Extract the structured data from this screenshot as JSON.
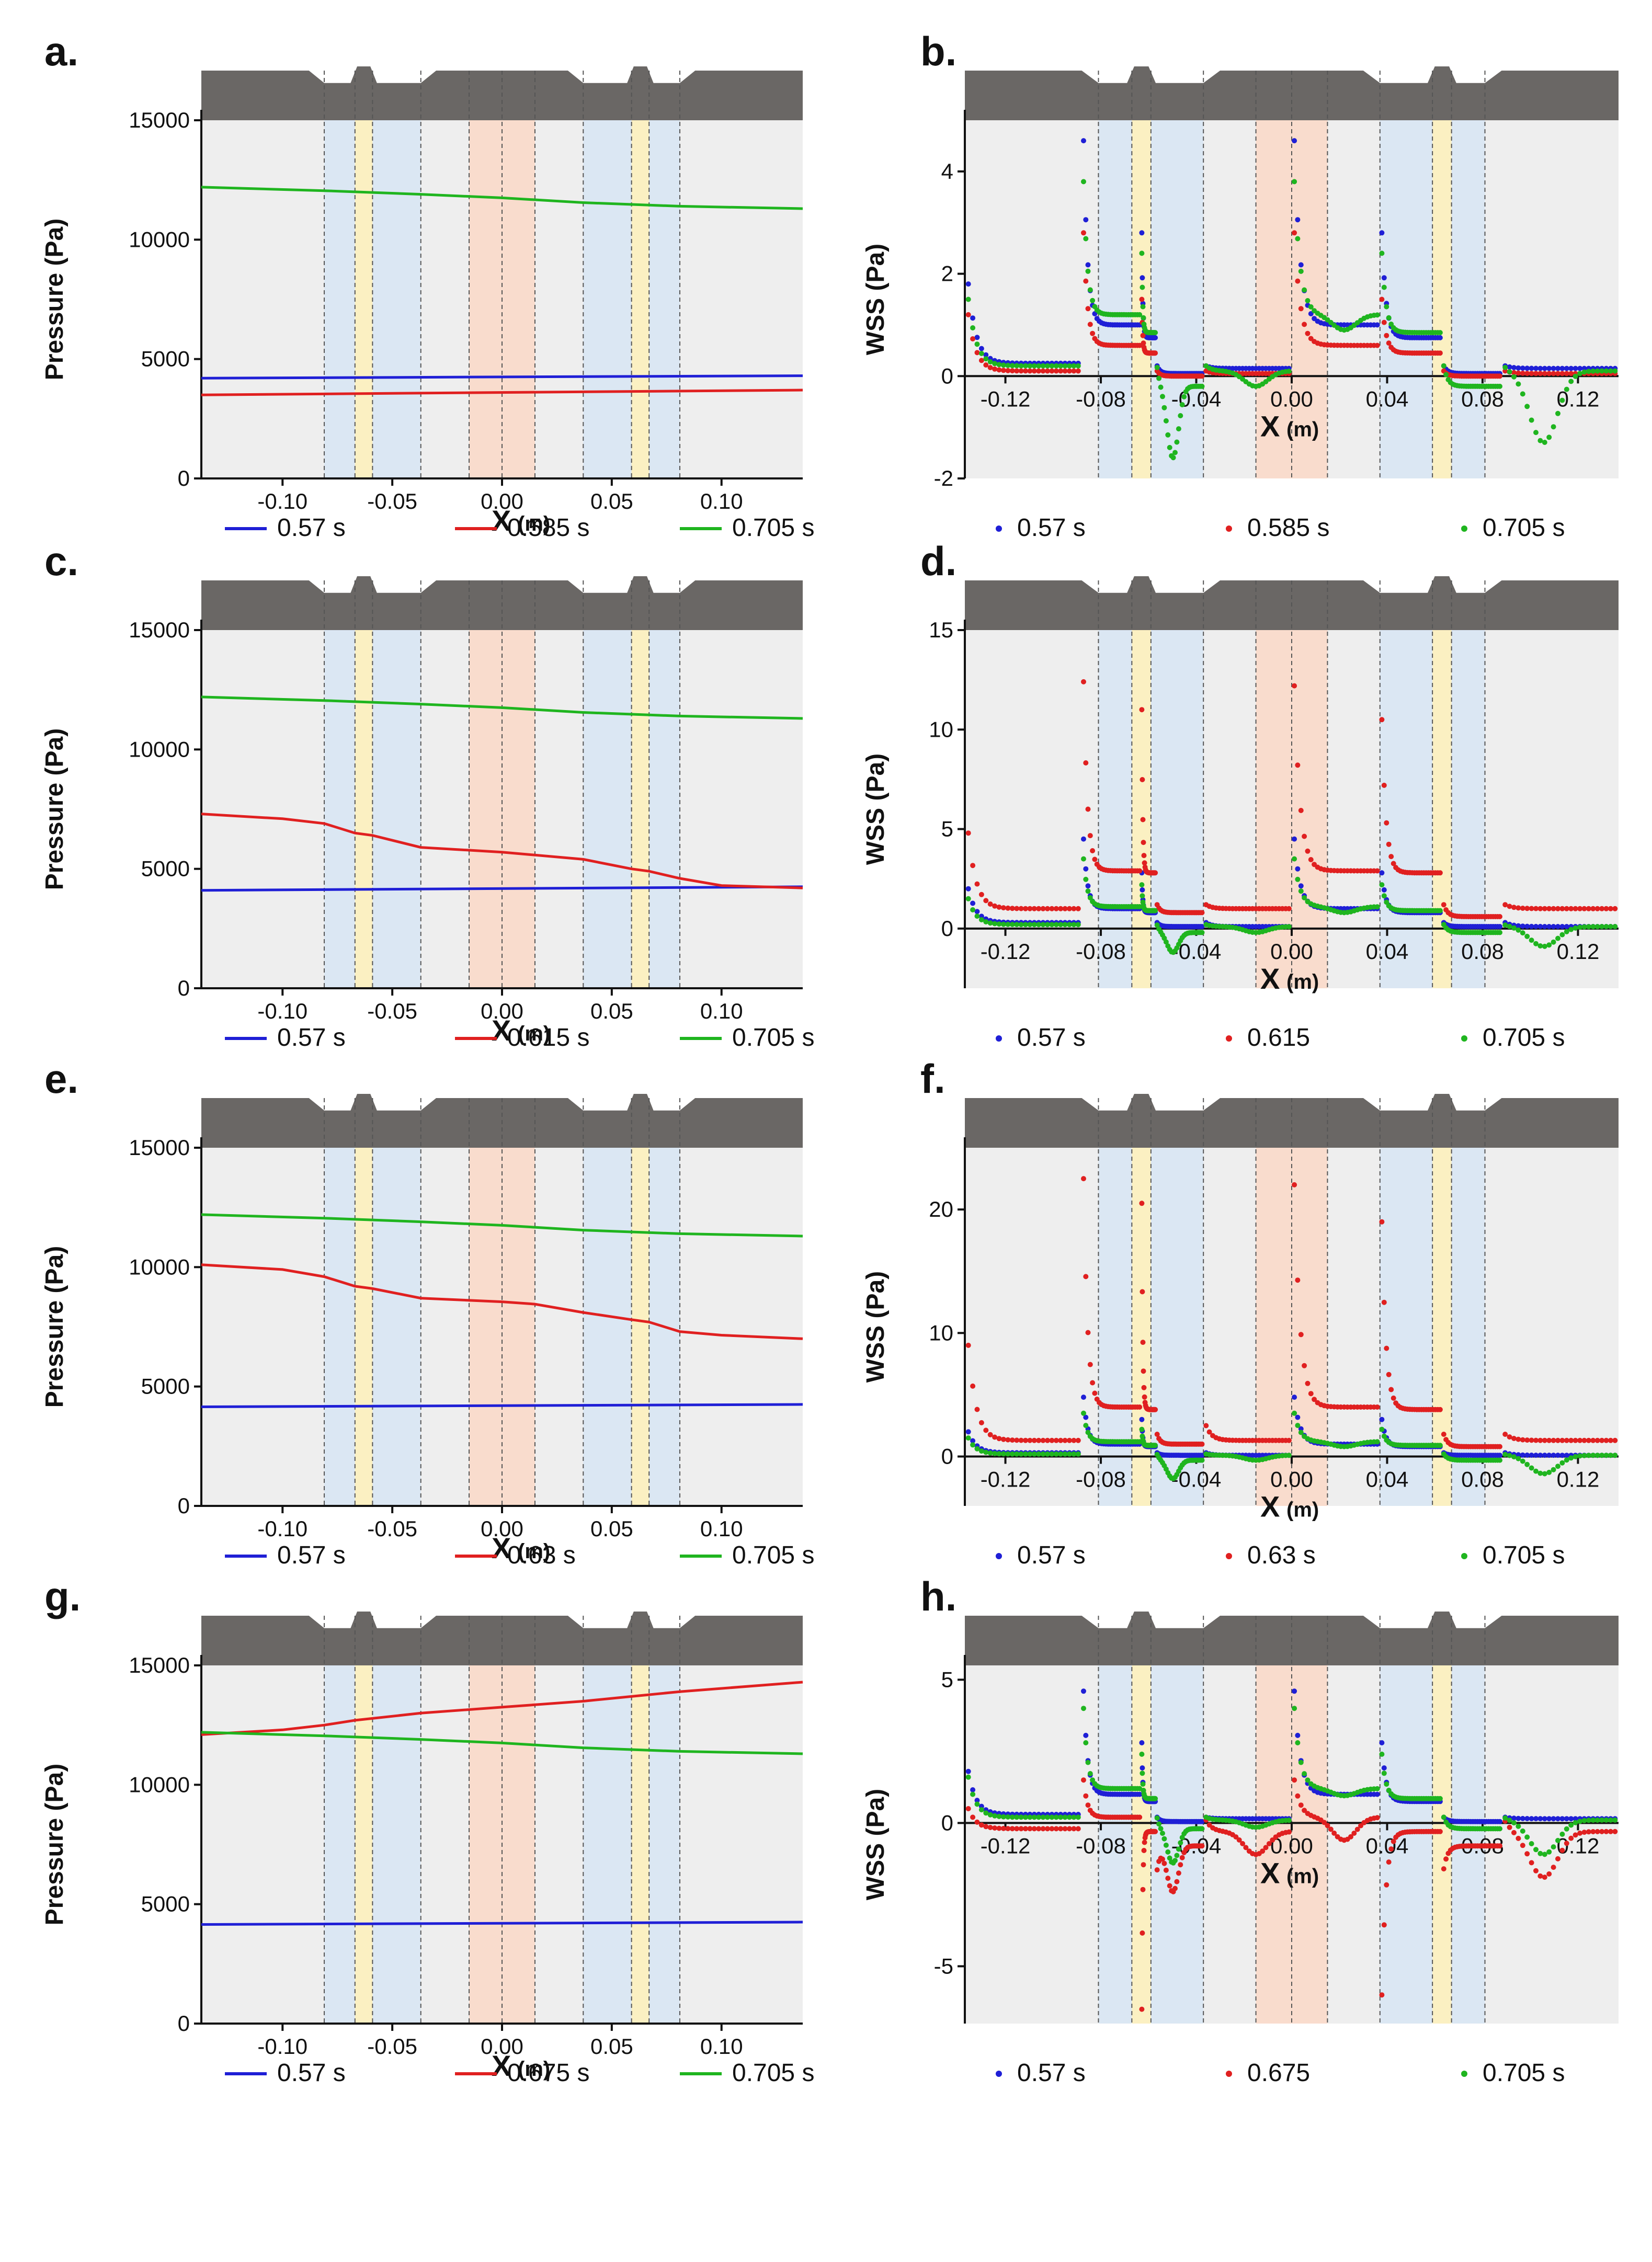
{
  "colors": {
    "blue": "#1f1fd6",
    "red": "#e02020",
    "green": "#1fb51f",
    "plot_bg": "#eeeeee",
    "blue_band": "#dbe7f3",
    "yellow_band": "#fbf0c2",
    "orange_band": "#f9dccd",
    "vessel": "#6a6765",
    "band_line": "#555555"
  },
  "shading": {
    "blue_bands": [
      [
        -0.081,
        -0.037
      ],
      [
        0.037,
        0.081
      ]
    ],
    "yellow_bands": [
      [
        -0.067,
        -0.059
      ],
      [
        0.059,
        0.067
      ]
    ],
    "orange_bands": [
      [
        -0.015,
        0.015
      ]
    ],
    "divider_lines": [
      -0.081,
      -0.067,
      -0.059,
      -0.037,
      -0.015,
      0.0,
      0.015,
      0.037,
      0.059,
      0.067,
      0.081
    ]
  },
  "chart_data": [
    {
      "panel": "a.",
      "type": "line",
      "title": "",
      "xlabel_main": "X",
      "xlabel_unit": "(m)",
      "ylabel": "Pressure",
      "ylabel_unit": "(Pa)",
      "xlim": [
        -0.137,
        0.137
      ],
      "ylim": [
        0,
        15000
      ],
      "xticks": [
        "-0.10",
        "-0.05",
        "0.00",
        "0.05",
        "0.10"
      ],
      "xtick_values": [
        -0.1,
        -0.05,
        0.0,
        0.05,
        0.1
      ],
      "yticks": [
        "0",
        "5000",
        "10000",
        "15000"
      ],
      "ytick_values": [
        0,
        5000,
        10000,
        15000
      ],
      "series": [
        {
          "name": "0.57 s",
          "color": "blue",
          "x": [
            -0.137,
            0.137
          ],
          "values": [
            4200,
            4300
          ]
        },
        {
          "name": "0.585 s",
          "color": "red",
          "x": [
            -0.137,
            0.137
          ],
          "values": [
            3500,
            3700
          ]
        },
        {
          "name": "0.705 s",
          "color": "green",
          "x": [
            -0.137,
            -0.081,
            -0.037,
            0.0,
            0.037,
            0.081,
            0.137
          ],
          "values": [
            12200,
            12050,
            11900,
            11750,
            11550,
            11400,
            11300
          ]
        }
      ],
      "legend": [
        "0.57 s",
        "0.585 s",
        "0.705 s"
      ]
    },
    {
      "panel": "b.",
      "type": "scatter",
      "title": "",
      "xlabel_main": "X",
      "xlabel_unit": "(m)",
      "ylabel": "WSS (Pa)",
      "ylabel_unit": "",
      "xlim": [
        -0.137,
        0.137
      ],
      "ylim": [
        -2,
        5
      ],
      "xticks": [
        "-0.12",
        "-0.08",
        "-0.04",
        "0.00",
        "0.04",
        "0.08",
        "0.12"
      ],
      "xtick_values": [
        -0.12,
        -0.08,
        -0.04,
        0.0,
        0.04,
        0.08,
        0.12
      ],
      "yticks": [
        "-2",
        "0",
        "2",
        "4"
      ],
      "ytick_values": [
        -2,
        0,
        2,
        4
      ],
      "series": [
        {
          "name": "0.57 s",
          "color": "blue",
          "base": [
            0.25,
            1.0,
            0.75,
            0.05,
            0.15,
            1.0,
            0.75,
            0.05,
            0.15
          ],
          "peaks": [
            1.8,
            4.6,
            2.8,
            0.2,
            0.2,
            4.6,
            2.8,
            0.2,
            0.2
          ],
          "dip": [
            0,
            0,
            0,
            0
          ]
        },
        {
          "name": "0.585 s",
          "color": "red",
          "base": [
            0.1,
            0.6,
            0.45,
            0.0,
            0.05,
            0.6,
            0.45,
            0.0,
            0.05
          ],
          "peaks": [
            1.2,
            2.8,
            1.5,
            0.1,
            0.1,
            2.8,
            1.5,
            0.1,
            0.1
          ],
          "dip": [
            0,
            0,
            0,
            0
          ]
        },
        {
          "name": "0.705 s",
          "color": "green",
          "base": [
            0.2,
            1.2,
            0.85,
            -0.2,
            0.1,
            1.2,
            0.85,
            -0.2,
            0.1
          ],
          "peaks": [
            1.5,
            3.8,
            2.4,
            0.2,
            0.2,
            3.8,
            2.4,
            0.2,
            0.2
          ],
          "dip": [
            -1.4,
            -0.6,
            -1.4,
            -0.6
          ]
        }
      ],
      "legend": [
        "0.57 s",
        "0.585 s",
        "0.705 s"
      ]
    },
    {
      "panel": "c.",
      "type": "line",
      "title": "",
      "xlabel_main": "X",
      "xlabel_unit": "(m)",
      "ylabel": "Pressure",
      "ylabel_unit": "(Pa)",
      "xlim": [
        -0.137,
        0.137
      ],
      "ylim": [
        0,
        15000
      ],
      "xticks": [
        "-0.10",
        "-0.05",
        "0.00",
        "0.05",
        "0.10"
      ],
      "xtick_values": [
        -0.1,
        -0.05,
        0.0,
        0.05,
        0.1
      ],
      "yticks": [
        "0",
        "5000",
        "10000",
        "15000"
      ],
      "ytick_values": [
        0,
        5000,
        10000,
        15000
      ],
      "series": [
        {
          "name": "0.57 s",
          "color": "blue",
          "x": [
            -0.137,
            0.137
          ],
          "values": [
            4100,
            4250
          ]
        },
        {
          "name": "0.615 s",
          "color": "red",
          "x": [
            -0.137,
            -0.1,
            -0.081,
            -0.067,
            -0.059,
            -0.037,
            0.0,
            0.037,
            0.059,
            0.067,
            0.081,
            0.1,
            0.137
          ],
          "values": [
            7300,
            7100,
            6900,
            6500,
            6400,
            5900,
            5700,
            5400,
            5000,
            4900,
            4600,
            4300,
            4200
          ]
        },
        {
          "name": "0.705 s",
          "color": "green",
          "x": [
            -0.137,
            -0.081,
            -0.037,
            0.0,
            0.037,
            0.081,
            0.137
          ],
          "values": [
            12200,
            12050,
            11900,
            11750,
            11550,
            11400,
            11300
          ]
        }
      ],
      "legend": [
        "0.57 s",
        "0.615 s",
        "0.705 s"
      ]
    },
    {
      "panel": "d.",
      "type": "scatter",
      "title": "",
      "xlabel_main": "X",
      "xlabel_unit": "(m)",
      "ylabel": "WSS (Pa)",
      "ylabel_unit": "",
      "xlim": [
        -0.137,
        0.137
      ],
      "ylim": [
        -3,
        15
      ],
      "xticks": [
        "-0.12",
        "-0.08",
        "-0.04",
        "0.00",
        "0.04",
        "0.08",
        "0.12"
      ],
      "xtick_values": [
        -0.12,
        -0.08,
        -0.04,
        0.0,
        0.04,
        0.08,
        0.12
      ],
      "yticks": [
        "0",
        "5",
        "10",
        "15"
      ],
      "ytick_values": [
        0,
        5,
        10,
        15
      ],
      "series": [
        {
          "name": "0.57 s",
          "color": "blue",
          "base": [
            0.3,
            1.0,
            0.8,
            0.1,
            0.1,
            1.0,
            0.8,
            0.1,
            0.1
          ],
          "peaks": [
            2.0,
            4.5,
            2.8,
            0.3,
            0.3,
            4.5,
            2.8,
            0.3,
            0.3
          ],
          "dip": [
            0,
            0,
            0,
            0
          ]
        },
        {
          "name": "0.615",
          "color": "red",
          "base": [
            1.0,
            2.9,
            2.8,
            0.8,
            1.0,
            2.9,
            2.8,
            0.6,
            1.0
          ],
          "peaks": [
            4.8,
            12.4,
            11.0,
            1.2,
            1.2,
            12.2,
            10.5,
            1.2,
            1.2
          ],
          "dip": [
            0,
            0,
            0,
            0
          ]
        },
        {
          "name": "0.705 s",
          "color": "green",
          "base": [
            0.2,
            1.1,
            0.9,
            -0.2,
            0.1,
            1.1,
            0.9,
            -0.2,
            0.1
          ],
          "peaks": [
            1.5,
            3.5,
            2.2,
            0.2,
            0.2,
            3.5,
            2.2,
            0.2,
            0.2
          ],
          "dip": [
            -1.0,
            -0.6,
            -1.0,
            -0.6
          ]
        }
      ],
      "legend": [
        "0.57 s",
        "0.615",
        "0.705 s"
      ]
    },
    {
      "panel": "e.",
      "type": "line",
      "title": "",
      "xlabel_main": "X",
      "xlabel_unit": "(m)",
      "ylabel": "Pressure",
      "ylabel_unit": "(Pa)",
      "xlim": [
        -0.137,
        0.137
      ],
      "ylim": [
        0,
        15000
      ],
      "xticks": [
        "-0.10",
        "-0.05",
        "0.00",
        "0.05",
        "0.10"
      ],
      "xtick_values": [
        -0.1,
        -0.05,
        0.0,
        0.05,
        0.1
      ],
      "yticks": [
        "0",
        "5000",
        "10000",
        "15000"
      ],
      "ytick_values": [
        0,
        5000,
        10000,
        15000
      ],
      "series": [
        {
          "name": "0.57 s",
          "color": "blue",
          "x": [
            -0.137,
            0.137
          ],
          "values": [
            4150,
            4250
          ]
        },
        {
          "name": "0.63 s",
          "color": "red",
          "x": [
            -0.137,
            -0.1,
            -0.081,
            -0.067,
            -0.059,
            -0.037,
            0.0,
            0.015,
            0.037,
            0.059,
            0.067,
            0.081,
            0.1,
            0.137
          ],
          "values": [
            10100,
            9900,
            9600,
            9200,
            9100,
            8700,
            8550,
            8450,
            8100,
            7800,
            7700,
            7300,
            7150,
            7000
          ]
        },
        {
          "name": "0.705 s",
          "color": "green",
          "x": [
            -0.137,
            -0.081,
            -0.037,
            0.0,
            0.037,
            0.081,
            0.137
          ],
          "values": [
            12200,
            12050,
            11900,
            11750,
            11550,
            11400,
            11300
          ]
        }
      ],
      "legend": [
        "0.57 s",
        "0.63 s",
        "0.705 s"
      ]
    },
    {
      "panel": "f.",
      "type": "scatter",
      "title": "",
      "xlabel_main": "X",
      "xlabel_unit": "(m)",
      "ylabel": "WSS (Pa)",
      "ylabel_unit": "",
      "xlim": [
        -0.137,
        0.137
      ],
      "ylim": [
        -4,
        25
      ],
      "xticks": [
        "-0.12",
        "-0.08",
        "-0.04",
        "0.00",
        "0.04",
        "0.08",
        "0.12"
      ],
      "xtick_values": [
        -0.12,
        -0.08,
        -0.04,
        0.0,
        0.04,
        0.08,
        0.12
      ],
      "yticks": [
        "0",
        "10",
        "20"
      ],
      "ytick_values": [
        0,
        10,
        20
      ],
      "series": [
        {
          "name": "0.57 s",
          "color": "blue",
          "base": [
            0.3,
            1.0,
            0.8,
            0.1,
            0.1,
            1.0,
            0.8,
            0.1,
            0.1
          ],
          "peaks": [
            2.0,
            4.8,
            3.0,
            0.3,
            0.3,
            4.8,
            3.0,
            0.3,
            0.3
          ],
          "dip": [
            0,
            0,
            0,
            0
          ]
        },
        {
          "name": "0.63 s",
          "color": "red",
          "base": [
            1.3,
            4.0,
            3.8,
            1.0,
            1.3,
            4.0,
            3.8,
            0.8,
            1.3
          ],
          "peaks": [
            9.0,
            22.5,
            20.5,
            1.8,
            2.5,
            22.0,
            19.0,
            1.8,
            1.8
          ],
          "dip": [
            0,
            0,
            0,
            0
          ]
        },
        {
          "name": "0.705 s",
          "color": "green",
          "base": [
            0.2,
            1.2,
            0.9,
            -0.3,
            0.1,
            1.2,
            0.9,
            -0.3,
            0.1
          ],
          "peaks": [
            1.5,
            3.5,
            2.2,
            0.2,
            0.2,
            3.5,
            2.2,
            0.2,
            0.2
          ],
          "dip": [
            -1.5,
            -0.8,
            -1.5,
            -0.8
          ]
        }
      ],
      "legend": [
        "0.57 s",
        "0.63 s",
        "0.705 s"
      ]
    },
    {
      "panel": "g.",
      "type": "line",
      "title": "",
      "xlabel_main": "X",
      "xlabel_unit": "(m)",
      "ylabel": "Pressure",
      "ylabel_unit": "(Pa)",
      "xlim": [
        -0.137,
        0.137
      ],
      "ylim": [
        0,
        15000
      ],
      "xticks": [
        "-0.10",
        "-0.05",
        "0.00",
        "0.05",
        "0.10"
      ],
      "xtick_values": [
        -0.1,
        -0.05,
        0.0,
        0.05,
        0.1
      ],
      "yticks": [
        "0",
        "5000",
        "10000",
        "15000"
      ],
      "ytick_values": [
        0,
        5000,
        10000,
        15000
      ],
      "series": [
        {
          "name": "0.57 s",
          "color": "blue",
          "x": [
            -0.137,
            0.137
          ],
          "values": [
            4150,
            4250
          ]
        },
        {
          "name": "0.675 s",
          "color": "red",
          "x": [
            -0.137,
            -0.1,
            -0.081,
            -0.067,
            -0.037,
            0.0,
            0.037,
            0.059,
            0.081,
            0.137
          ],
          "values": [
            12100,
            12300,
            12500,
            12700,
            13000,
            13250,
            13500,
            13700,
            13900,
            14300
          ]
        },
        {
          "name": "0.705 s",
          "color": "green",
          "x": [
            -0.137,
            -0.081,
            -0.037,
            0.0,
            0.037,
            0.081,
            0.137
          ],
          "values": [
            12200,
            12050,
            11900,
            11750,
            11550,
            11400,
            11300
          ]
        }
      ],
      "legend": [
        "0.57 s",
        "0.675 s",
        "0.705 s"
      ]
    },
    {
      "panel": "h.",
      "type": "scatter",
      "title": "",
      "xlabel_main": "X",
      "xlabel_unit": "(m)",
      "ylabel": "WSS (Pa)",
      "ylabel_unit": "",
      "xlim": [
        -0.137,
        0.137
      ],
      "ylim": [
        -7,
        5.5
      ],
      "xticks": [
        "-0.12",
        "-0.08",
        "-0.04",
        "0.00",
        "0.04",
        "0.08",
        "0.12"
      ],
      "xtick_values": [
        -0.12,
        -0.08,
        -0.04,
        0.0,
        0.04,
        0.08,
        0.12
      ],
      "yticks": [
        "-5",
        "0",
        "5"
      ],
      "ytick_values": [
        -5,
        0,
        5
      ],
      "series": [
        {
          "name": "0.57 s",
          "color": "blue",
          "base": [
            0.3,
            1.0,
            0.75,
            0.05,
            0.15,
            1.0,
            0.75,
            0.05,
            0.15
          ],
          "peaks": [
            1.8,
            4.6,
            2.8,
            0.2,
            0.2,
            4.6,
            2.8,
            0.2,
            0.2
          ],
          "dip": [
            0,
            0,
            0,
            0
          ]
        },
        {
          "name": "0.675",
          "color": "red",
          "base": [
            -0.2,
            0.2,
            -0.3,
            -0.8,
            -0.3,
            0.2,
            -0.3,
            -0.8,
            -0.3
          ],
          "peaks": [
            0.5,
            1.5,
            -6.5,
            -1.6,
            0.1,
            1.5,
            -6.0,
            -1.6,
            0.1
          ],
          "dip": [
            -1.6,
            -1.6,
            -1.6,
            -1.6
          ]
        },
        {
          "name": "0.705 s",
          "color": "green",
          "base": [
            0.2,
            1.2,
            0.85,
            -0.2,
            0.1,
            1.2,
            0.85,
            -0.2,
            0.1
          ],
          "peaks": [
            1.6,
            4.0,
            2.4,
            0.2,
            0.2,
            4.0,
            2.4,
            0.2,
            0.2
          ],
          "dip": [
            -1.2,
            -0.5,
            -1.2,
            -0.5
          ]
        }
      ],
      "legend": [
        "0.57 s",
        "0.675",
        "0.705 s"
      ]
    }
  ]
}
